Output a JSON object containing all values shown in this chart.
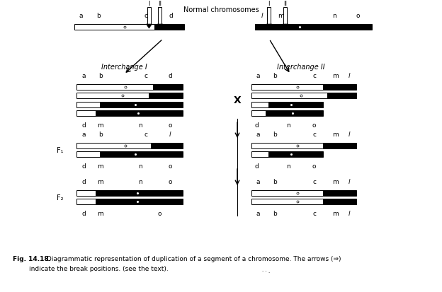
{
  "title": "Normal chromosomes",
  "fig_bold": "Fig. 14.18.",
  "fig_rest": " Diagrammatic representation of duplication of a segment of a chromosome. The arrows (⇒)",
  "fig_line2": "    indicate the break positions. (see the text).",
  "bg_color": "#ffffff"
}
